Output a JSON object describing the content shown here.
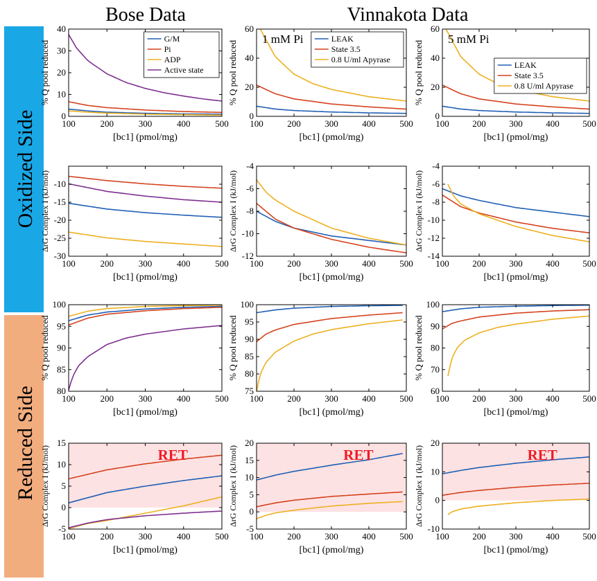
{
  "headers": {
    "bose": "Bose Data",
    "vinnakota": "Vinnakota Data"
  },
  "side_labels": {
    "oxidized": "Oxidized Side",
    "reduced": "Reduced Side"
  },
  "colors": {
    "blue": "#1f5fb4",
    "red": "#d4421e",
    "yellow": "#edb01f",
    "purple": "#7d2e8f",
    "oxidized_band": "#1aa7e6",
    "reduced_band": "#f2ad7f",
    "ret_fill": "#fde2e3",
    "ret_text": "#ee1c24"
  },
  "chart_data": [
    {
      "id": "p00",
      "type": "line",
      "xlabel": "[bc1] (pmol/mg)",
      "ylabel": "% Q pool reduced",
      "xlim": [
        100,
        500
      ],
      "ylim": [
        0,
        40
      ],
      "xticks": [
        100,
        200,
        300,
        400,
        500
      ],
      "yticks": [
        0,
        10,
        20,
        30,
        40
      ],
      "legend": "top-right",
      "series": [
        {
          "name": "G/M",
          "color": "blue",
          "x": [
            100,
            150,
            200,
            300,
            400,
            500
          ],
          "y": [
            3.3,
            2.5,
            1.9,
            1.4,
            1.1,
            1.0
          ]
        },
        {
          "name": "Pi",
          "color": "red",
          "x": [
            100,
            150,
            200,
            300,
            400,
            500
          ],
          "y": [
            6.7,
            5.0,
            4.0,
            2.9,
            2.2,
            1.8
          ]
        },
        {
          "name": "ADP",
          "color": "yellow",
          "x": [
            100,
            150,
            200,
            300,
            400,
            500
          ],
          "y": [
            2.5,
            1.9,
            1.5,
            1.0,
            0.8,
            0.6
          ]
        },
        {
          "name": "Active state",
          "color": "purple",
          "x": [
            100,
            120,
            150,
            200,
            250,
            300,
            350,
            400,
            450,
            500
          ],
          "y": [
            37.5,
            31.5,
            25.5,
            19.5,
            15.5,
            12.8,
            10.8,
            9.3,
            8.0,
            7.0
          ]
        }
      ]
    },
    {
      "id": "p01",
      "type": "line",
      "xlabel": "[bc1] (pmol/mg)",
      "ylabel": "% Q pool reduced",
      "xlim": [
        100,
        500
      ],
      "ylim": [
        0,
        60
      ],
      "xticks": [
        100,
        200,
        300,
        400,
        500
      ],
      "yticks": [
        0,
        20,
        40,
        60
      ],
      "annotation": "1 mM Pi",
      "legend": "top-right",
      "series": [
        {
          "name": "LEAK",
          "color": "blue",
          "x": [
            100,
            150,
            200,
            300,
            400,
            500
          ],
          "y": [
            7.0,
            5.0,
            4.0,
            3.0,
            2.4,
            2.0
          ]
        },
        {
          "name": "State 3.5",
          "color": "red",
          "x": [
            100,
            150,
            200,
            300,
            400,
            500
          ],
          "y": [
            21.5,
            15.5,
            12.0,
            8.5,
            6.5,
            5.0
          ]
        },
        {
          "name": "0.8 U/ml Apyrase",
          "color": "yellow",
          "x": [
            110,
            150,
            200,
            250,
            300,
            400,
            500
          ],
          "y": [
            60,
            41,
            29,
            22.5,
            18.5,
            13.5,
            10.5
          ]
        }
      ]
    },
    {
      "id": "p02",
      "type": "line",
      "xlabel": "[bc1] (pmol/mg)",
      "ylabel": "% Q pool reduced",
      "xlim": [
        100,
        500
      ],
      "ylim": [
        0,
        60
      ],
      "xticks": [
        100,
        200,
        300,
        400,
        500
      ],
      "yticks": [
        0,
        20,
        40,
        60
      ],
      "annotation": "5 mM Pi",
      "legend": "top-right",
      "series": [
        {
          "name": "LEAK",
          "color": "blue",
          "x": [
            100,
            150,
            200,
            300,
            400,
            500
          ],
          "y": [
            7.0,
            5.0,
            4.0,
            3.0,
            2.4,
            2.0
          ]
        },
        {
          "name": "State 3.5",
          "color": "red",
          "x": [
            100,
            150,
            200,
            300,
            400,
            500
          ],
          "y": [
            21.5,
            15.5,
            12.0,
            8.5,
            6.5,
            5.0
          ]
        },
        {
          "name": "0.8 U/ml Apyrase",
          "color": "yellow",
          "x": [
            110,
            150,
            200,
            250,
            300,
            400,
            500
          ],
          "y": [
            60,
            41,
            29,
            22.5,
            18.5,
            13.5,
            10.5
          ]
        }
      ]
    },
    {
      "id": "p10",
      "type": "line",
      "xlabel": "[bc1] (pmol/mg)",
      "ylabel": "ΔrG Complex I (kJ/mol)",
      "xlim": [
        100,
        500
      ],
      "ylim": [
        -30,
        -5
      ],
      "xticks": [
        100,
        200,
        300,
        400,
        500
      ],
      "yticks": [
        -30,
        -25,
        -20,
        -15,
        -10
      ],
      "series": [
        {
          "color": "blue",
          "x": [
            100,
            200,
            300,
            400,
            500
          ],
          "y": [
            -15.3,
            -16.9,
            -17.9,
            -18.6,
            -19.2
          ]
        },
        {
          "color": "red",
          "x": [
            100,
            200,
            300,
            400,
            500
          ],
          "y": [
            -7.8,
            -9.0,
            -9.9,
            -10.6,
            -11.1
          ]
        },
        {
          "color": "purple",
          "x": [
            100,
            200,
            300,
            400,
            500
          ],
          "y": [
            -9.9,
            -12.0,
            -13.3,
            -14.3,
            -15.0
          ]
        },
        {
          "color": "yellow",
          "x": [
            100,
            200,
            300,
            400,
            500
          ],
          "y": [
            -23.3,
            -24.9,
            -25.9,
            -26.6,
            -27.3
          ]
        }
      ]
    },
    {
      "id": "p11",
      "type": "line",
      "xlabel": "[bc1] (pmol/mg)",
      "ylabel": "ΔrG Complex I (kJ/mol)",
      "xlim": [
        100,
        500
      ],
      "ylim": [
        -12,
        -4
      ],
      "xticks": [
        100,
        200,
        300,
        400,
        500
      ],
      "yticks": [
        -12,
        -10,
        -8,
        -6,
        -4
      ],
      "series": [
        {
          "color": "blue",
          "x": [
            100,
            150,
            200,
            300,
            400,
            500
          ],
          "y": [
            -8.0,
            -8.9,
            -9.5,
            -10.2,
            -10.6,
            -11.0
          ]
        },
        {
          "color": "red",
          "x": [
            100,
            150,
            200,
            300,
            400,
            500
          ],
          "y": [
            -7.3,
            -8.7,
            -9.5,
            -10.5,
            -11.2,
            -11.7
          ]
        },
        {
          "color": "yellow",
          "x": [
            100,
            125,
            150,
            200,
            300,
            400,
            500
          ],
          "y": [
            -5.2,
            -6.3,
            -7.0,
            -8.0,
            -9.5,
            -10.4,
            -11.0
          ]
        }
      ]
    },
    {
      "id": "p12",
      "type": "line",
      "xlabel": "[bc1] (pmol/mg)",
      "ylabel": "ΔrG Complex I (kJ/mol)",
      "xlim": [
        100,
        500
      ],
      "ylim": [
        -14,
        -4
      ],
      "xticks": [
        100,
        200,
        300,
        400,
        500
      ],
      "yticks": [
        -14,
        -12,
        -10,
        -8,
        -6,
        -4
      ],
      "series": [
        {
          "color": "blue",
          "x": [
            100,
            150,
            200,
            300,
            400,
            500
          ],
          "y": [
            -6.5,
            -7.3,
            -7.8,
            -8.6,
            -9.1,
            -9.6
          ]
        },
        {
          "color": "red",
          "x": [
            100,
            150,
            200,
            300,
            400,
            500
          ],
          "y": [
            -7.2,
            -8.5,
            -9.2,
            -10.2,
            -10.9,
            -11.4
          ]
        },
        {
          "color": "yellow",
          "x": [
            115,
            130,
            150,
            200,
            300,
            400,
            500
          ],
          "y": [
            -6.0,
            -7.3,
            -8.2,
            -9.3,
            -10.7,
            -11.7,
            -12.4
          ]
        }
      ]
    },
    {
      "id": "p20",
      "type": "line",
      "xlabel": "[bc1] (pmol/mg)",
      "ylabel": "% Q pool reduced",
      "xlim": [
        100,
        500
      ],
      "ylim": [
        80,
        100
      ],
      "xticks": [
        100,
        200,
        300,
        400,
        500
      ],
      "yticks": [
        80,
        85,
        90,
        95,
        100
      ],
      "series": [
        {
          "color": "blue",
          "x": [
            100,
            150,
            200,
            300,
            400,
            500
          ],
          "y": [
            96.3,
            97.6,
            98.3,
            99.0,
            99.4,
            99.6
          ]
        },
        {
          "color": "red",
          "x": [
            100,
            150,
            200,
            300,
            400,
            500
          ],
          "y": [
            95.3,
            96.9,
            97.8,
            98.6,
            99.1,
            99.4
          ]
        },
        {
          "color": "yellow",
          "x": [
            100,
            150,
            200,
            300,
            400,
            500
          ],
          "y": [
            97.3,
            98.5,
            99.1,
            99.6,
            99.8,
            99.9
          ]
        },
        {
          "color": "purple",
          "x": [
            100,
            110,
            125,
            150,
            200,
            250,
            300,
            400,
            500
          ],
          "y": [
            80.3,
            83.3,
            85.8,
            88.0,
            90.8,
            92.3,
            93.2,
            94.4,
            95.2
          ]
        }
      ]
    },
    {
      "id": "p21",
      "type": "line",
      "xlabel": "[bc1] (pmol/mg)",
      "ylabel": "% Q pool reduced",
      "xlim": [
        100,
        500
      ],
      "ylim": [
        75,
        100
      ],
      "xticks": [
        100,
        200,
        300,
        400,
        500
      ],
      "yticks": [
        75,
        80,
        85,
        90,
        95,
        100
      ],
      "series": [
        {
          "color": "blue",
          "x": [
            100,
            150,
            200,
            300,
            400,
            490
          ],
          "y": [
            97.7,
            98.5,
            99.0,
            99.5,
            99.7,
            99.8
          ]
        },
        {
          "color": "red",
          "x": [
            100,
            125,
            150,
            200,
            300,
            400,
            490
          ],
          "y": [
            89.3,
            91.5,
            92.7,
            94.3,
            96.0,
            97.0,
            97.7
          ]
        },
        {
          "color": "yellow",
          "x": [
            100,
            110,
            125,
            150,
            200,
            250,
            300,
            400,
            490
          ],
          "y": [
            75.0,
            80.0,
            83.3,
            86.3,
            89.5,
            91.5,
            92.8,
            94.5,
            95.6
          ]
        }
      ]
    },
    {
      "id": "p22",
      "type": "line",
      "xlabel": "[bc1] (pmol/mg)",
      "ylabel": "% Q pool reduced",
      "xlim": [
        100,
        500
      ],
      "ylim": [
        60,
        100
      ],
      "xticks": [
        100,
        200,
        300,
        400,
        500
      ],
      "yticks": [
        60,
        70,
        80,
        90,
        100
      ],
      "series": [
        {
          "color": "blue",
          "x": [
            100,
            150,
            200,
            300,
            400,
            500
          ],
          "y": [
            96.8,
            98.1,
            98.8,
            99.3,
            99.6,
            99.8
          ]
        },
        {
          "color": "red",
          "x": [
            100,
            125,
            150,
            200,
            300,
            400,
            500
          ],
          "y": [
            88.8,
            91.3,
            92.5,
            94.3,
            96.1,
            97.1,
            97.7
          ]
        },
        {
          "color": "yellow",
          "x": [
            115,
            125,
            140,
            160,
            200,
            250,
            300,
            400,
            500
          ],
          "y": [
            67.0,
            75.0,
            80.0,
            83.5,
            87.0,
            89.5,
            91.0,
            93.3,
            94.8
          ]
        }
      ]
    },
    {
      "id": "p30",
      "type": "line",
      "xlabel": "[bc1] (pmol/mg)",
      "ylabel": "ΔrG Complex I (kJ/mol)",
      "xlim": [
        100,
        500
      ],
      "ylim": [
        -5,
        15
      ],
      "xticks": [
        100,
        200,
        300,
        400,
        500
      ],
      "yticks": [
        -5,
        0,
        5,
        10,
        15
      ],
      "annotation": "RET",
      "ret_band": [
        0,
        15
      ],
      "series": [
        {
          "color": "red",
          "x": [
            100,
            200,
            300,
            400,
            500
          ],
          "y": [
            6.7,
            8.8,
            10.2,
            11.3,
            12.2
          ]
        },
        {
          "color": "blue",
          "x": [
            100,
            200,
            300,
            400,
            500
          ],
          "y": [
            1.1,
            3.5,
            5.0,
            6.3,
            7.4
          ]
        },
        {
          "color": "yellow",
          "x": [
            100,
            150,
            200,
            300,
            400,
            500
          ],
          "y": [
            -4.9,
            -3.7,
            -3.0,
            -1.3,
            0.4,
            2.5
          ]
        },
        {
          "color": "purple",
          "x": [
            100,
            150,
            200,
            300,
            400,
            500
          ],
          "y": [
            -4.7,
            -3.6,
            -2.8,
            -1.9,
            -1.3,
            -0.8
          ]
        }
      ]
    },
    {
      "id": "p31",
      "type": "line",
      "xlabel": "[bc1] (pmol/mg)",
      "ylabel": "ΔrG Complex I (kJ/mol)",
      "xlim": [
        100,
        500
      ],
      "ylim": [
        -5,
        20
      ],
      "xticks": [
        100,
        200,
        300,
        400,
        500
      ],
      "yticks": [
        -5,
        0,
        5,
        10,
        15,
        20
      ],
      "annotation": "RET",
      "ret_band": [
        0,
        20
      ],
      "series": [
        {
          "color": "blue",
          "x": [
            100,
            150,
            200,
            300,
            400,
            490
          ],
          "y": [
            9.3,
            10.7,
            11.8,
            13.6,
            15.2,
            17.0
          ]
        },
        {
          "color": "red",
          "x": [
            100,
            150,
            200,
            300,
            400,
            490
          ],
          "y": [
            1.5,
            2.6,
            3.4,
            4.5,
            5.2,
            5.8
          ]
        },
        {
          "color": "yellow",
          "x": [
            100,
            125,
            150,
            200,
            300,
            400,
            490
          ],
          "y": [
            -2.0,
            -1.0,
            -0.3,
            0.5,
            1.7,
            2.5,
            3.0
          ]
        }
      ]
    },
    {
      "id": "p32",
      "type": "line",
      "xlabel": "[bc1] (pmol/mg)",
      "ylabel": "ΔrG Complex I (kJ/mol)",
      "xlim": [
        100,
        500
      ],
      "ylim": [
        -10,
        20
      ],
      "xticks": [
        100,
        200,
        300,
        400,
        500
      ],
      "yticks": [
        -10,
        0,
        10,
        20
      ],
      "annotation": "RET",
      "ret_band": [
        0,
        20
      ],
      "series": [
        {
          "color": "blue",
          "x": [
            100,
            150,
            200,
            300,
            400,
            500
          ],
          "y": [
            9.3,
            10.5,
            11.5,
            13.0,
            14.2,
            15.2
          ]
        },
        {
          "color": "red",
          "x": [
            100,
            150,
            200,
            300,
            400,
            500
          ],
          "y": [
            1.8,
            2.8,
            3.5,
            4.6,
            5.4,
            6.0
          ]
        },
        {
          "color": "yellow",
          "x": [
            115,
            125,
            150,
            200,
            300,
            400,
            500
          ],
          "y": [
            -5.0,
            -4.0,
            -3.0,
            -2.0,
            -0.8,
            0.0,
            0.5
          ]
        }
      ]
    }
  ]
}
